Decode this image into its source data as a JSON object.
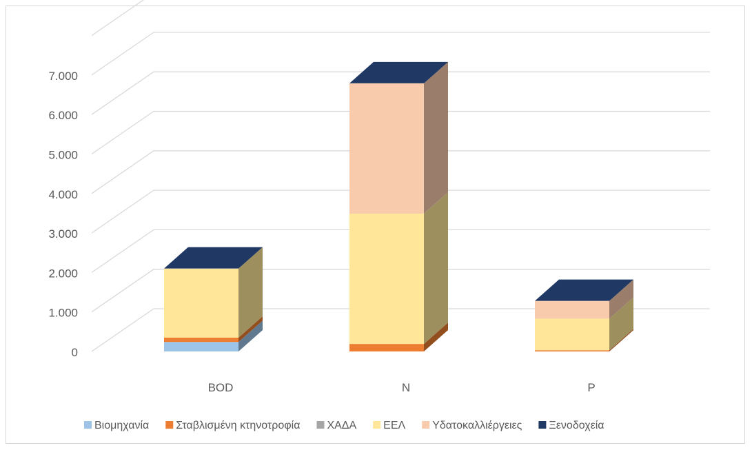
{
  "chart_data": {
    "type": "bar",
    "stacked": true,
    "three_d": true,
    "categories": [
      "BOD",
      "N",
      "P"
    ],
    "y_ticks": [
      "0",
      "1.000",
      "2.000",
      "3.000",
      "4.000",
      "5.000",
      "6.000",
      "7.000"
    ],
    "ylim": [
      0,
      8000
    ],
    "grid": true,
    "legend_position": "bottom",
    "series": [
      {
        "name": "Βιομηχανία",
        "color": "#9dc3e6",
        "values": [
          240,
          0,
          0
        ]
      },
      {
        "name": "Σταβλισμένη κτηνοτροφία",
        "color": "#ed7d31",
        "values": [
          110,
          190,
          30
        ]
      },
      {
        "name": "ΧΑΔΑ",
        "color": "#a5a5a5",
        "values": [
          0,
          0,
          0
        ]
      },
      {
        "name": "ΕΕΛ",
        "color": "#ffe699",
        "values": [
          1750,
          3300,
          800
        ]
      },
      {
        "name": "Υδατοκαλλιέργειες",
        "color": "#f8cbad",
        "values": [
          0,
          3300,
          450
        ]
      },
      {
        "name": "Ξενοδοχεία",
        "color": "#203864",
        "values": [
          0,
          0,
          0
        ]
      }
    ]
  }
}
